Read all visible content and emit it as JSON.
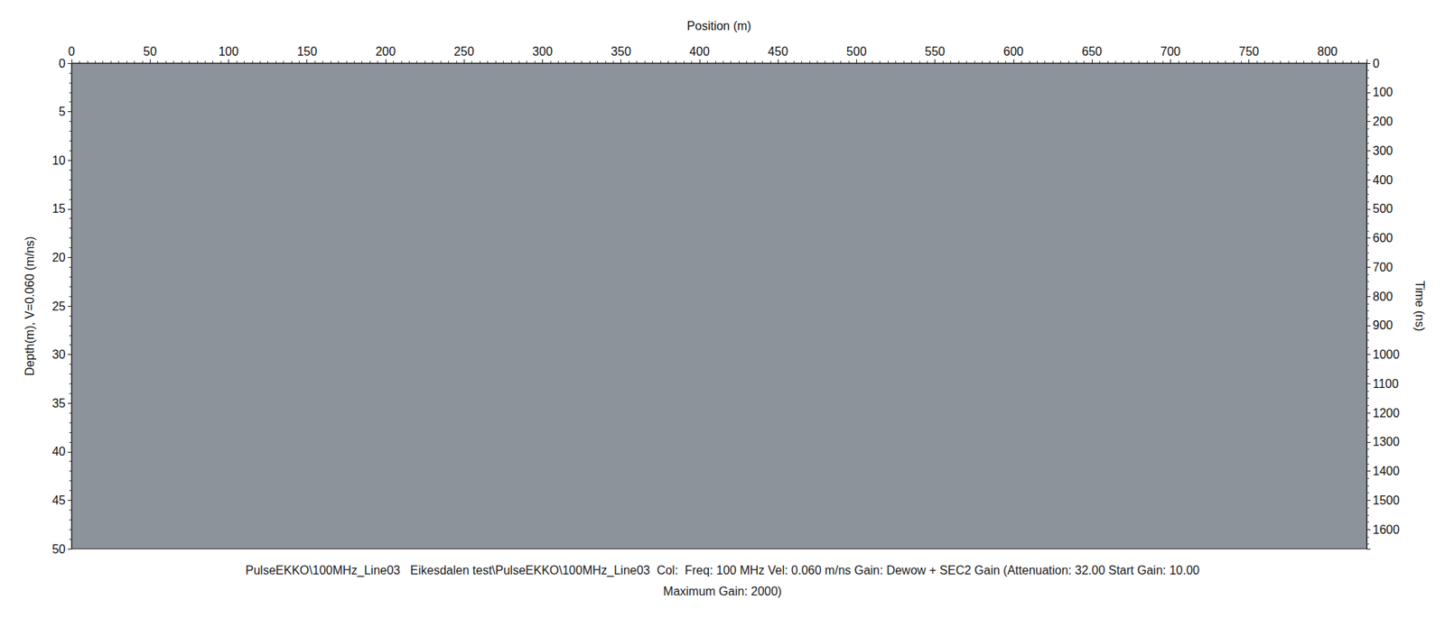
{
  "chart_data": {
    "type": "radargram",
    "x_label": "Position (m)",
    "y_label": "Depth(m), V=0.060 (m/ns)",
    "y2_label": "Time (ns)",
    "xlim": [
      0,
      825
    ],
    "xticks": [
      0,
      50,
      100,
      150,
      200,
      250,
      300,
      350,
      400,
      450,
      500,
      550,
      600,
      650,
      700,
      750,
      800
    ],
    "ylim": [
      0,
      50
    ],
    "yticks": [
      0,
      5,
      10,
      15,
      20,
      25,
      30,
      35,
      40,
      45,
      50
    ],
    "y2lim": [
      0,
      1666.7
    ],
    "y2ticks": [
      0,
      100,
      200,
      300,
      400,
      500,
      600,
      700,
      800,
      900,
      1000,
      1100,
      1200,
      1300,
      1400,
      1500,
      1600
    ],
    "color": "#8c939b",
    "grid": false,
    "annotations": [
      "PulseEKKO\\100MHz_Line03   Eikesdalen test\\PulseEKKO\\100MHz_Line03  Col:  Freq: 100 MHz Vel: 0.060 m/ns Gain: Dewow + SEC2 Gain (Attenuation: 32.00 Start Gain: 10.00",
      "Maximum Gain: 2000)"
    ]
  }
}
